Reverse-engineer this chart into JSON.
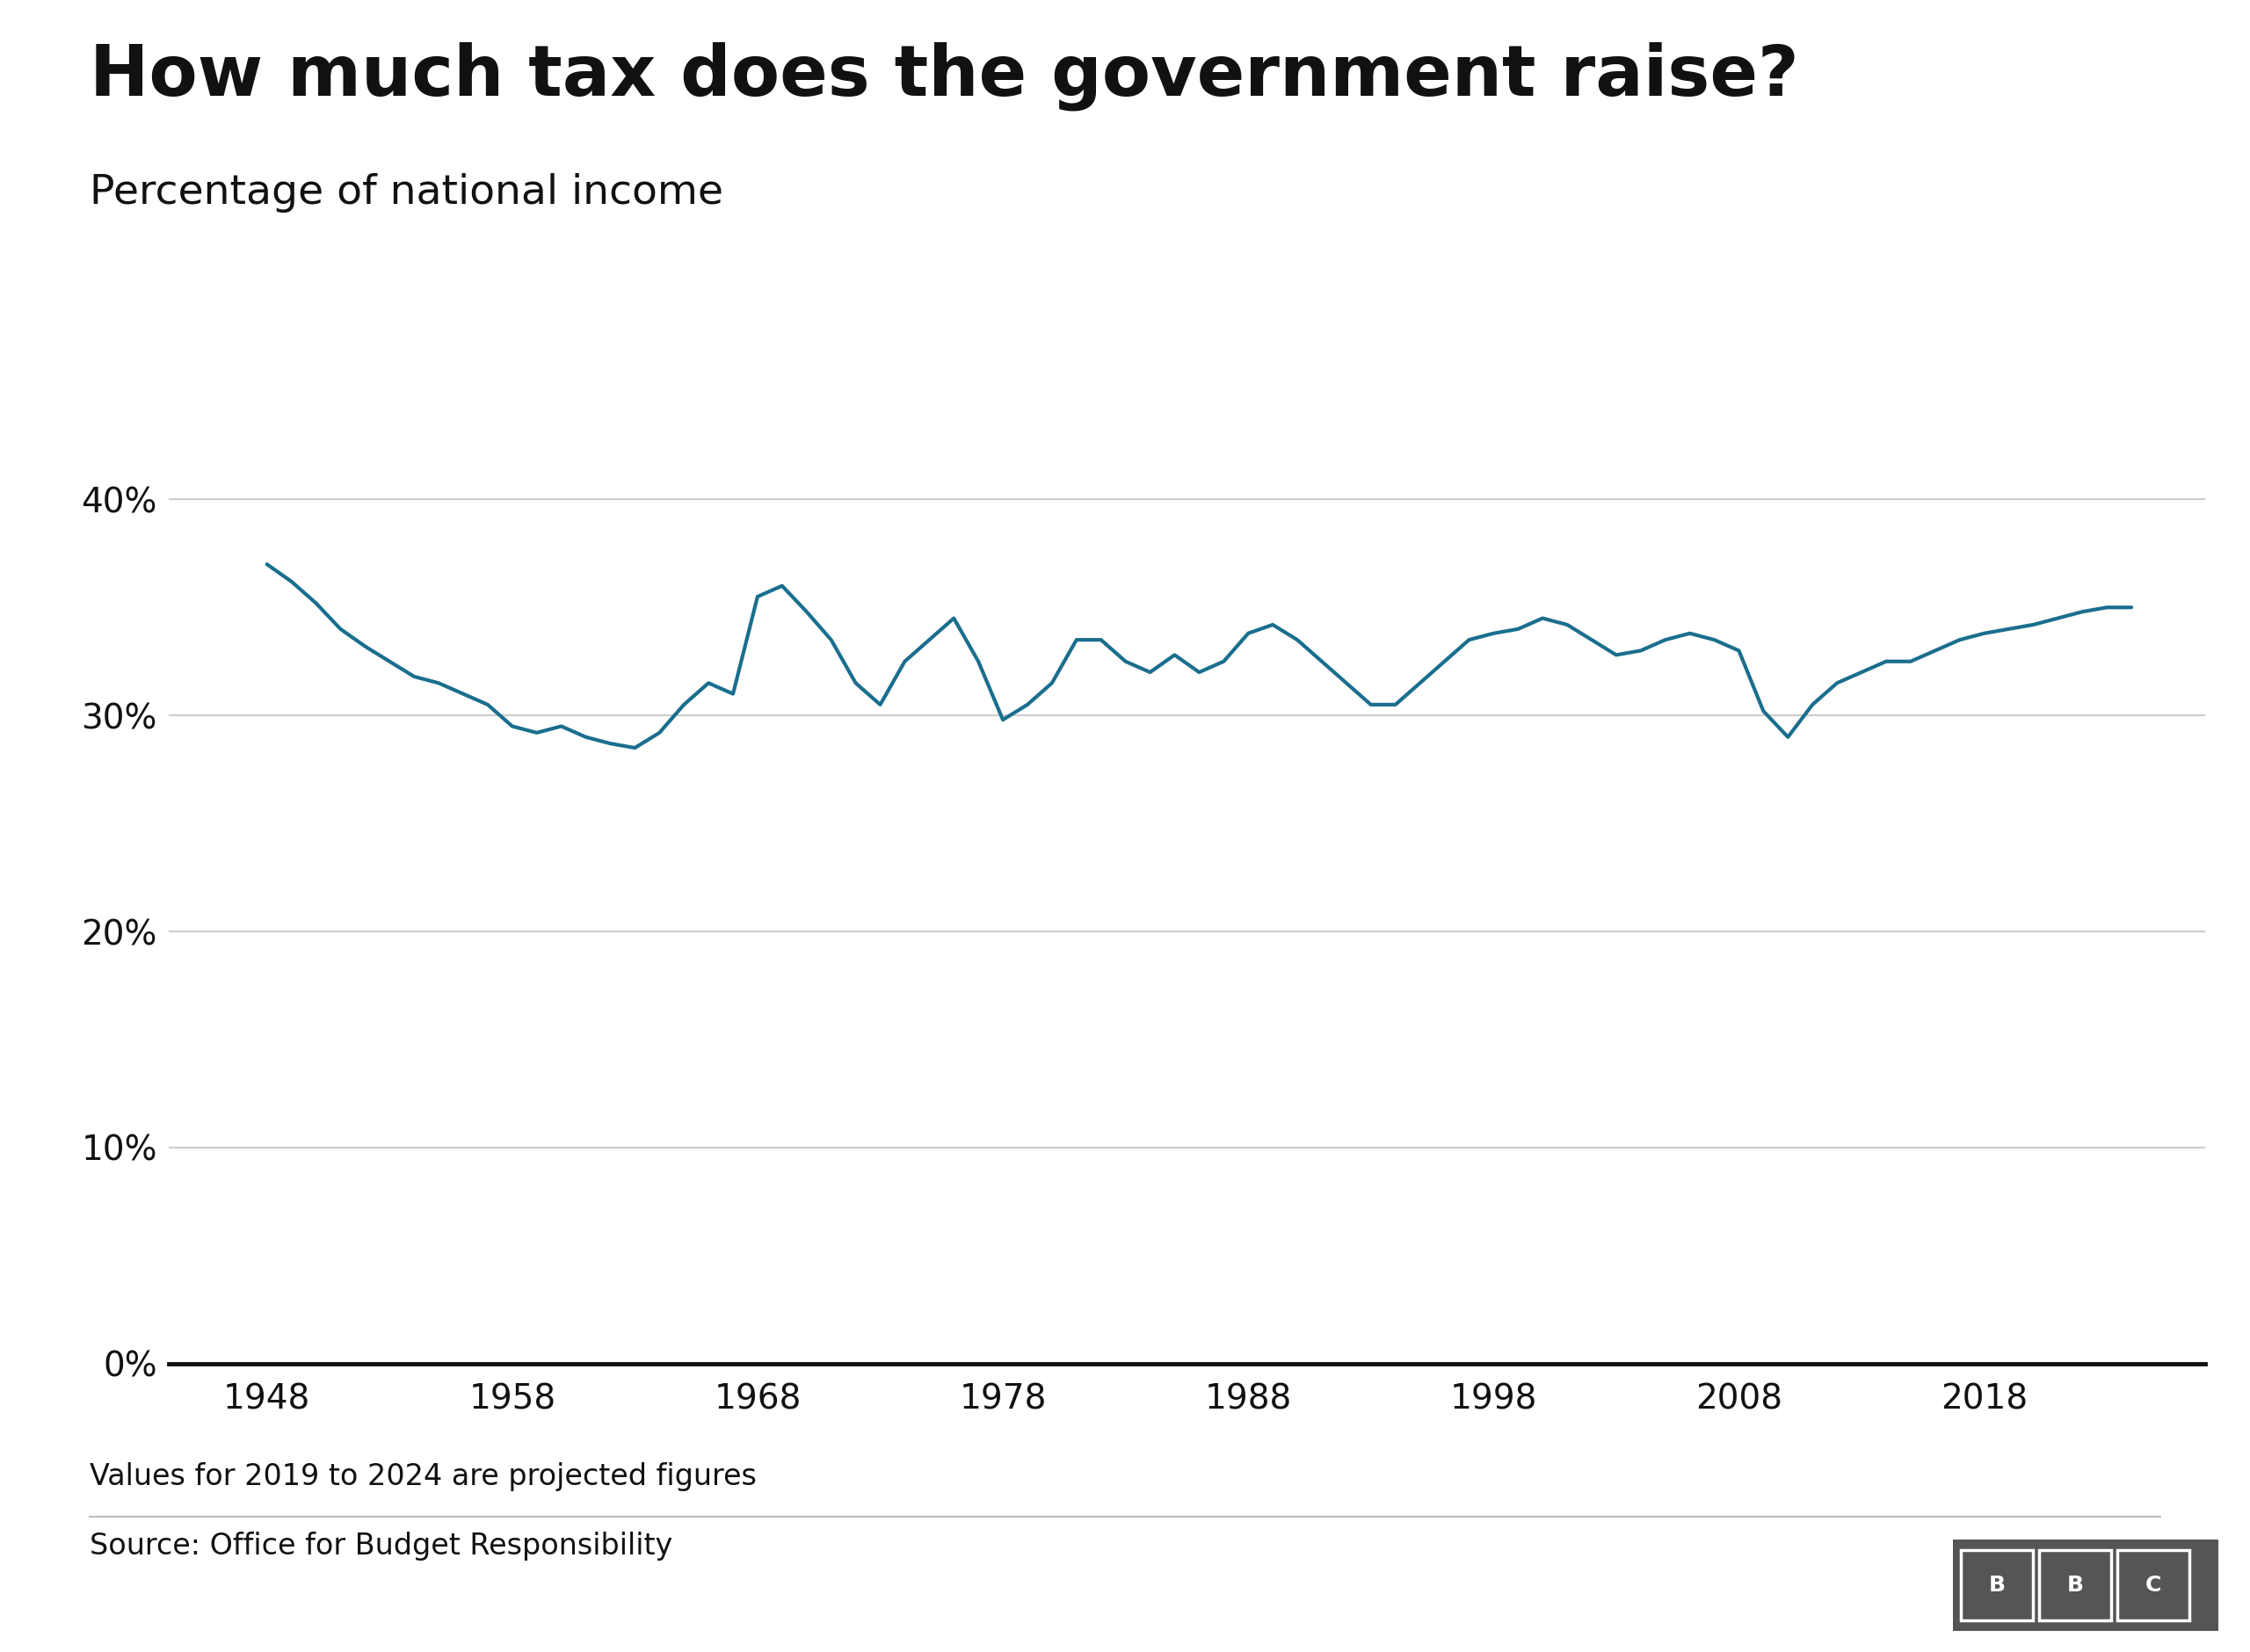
{
  "title": "How much tax does the government raise?",
  "subtitle": "Percentage of national income",
  "line_color": "#1a6e8e",
  "line_width": 3.0,
  "background_color": "#ffffff",
  "text_color": "#111111",
  "grid_color": "#cccccc",
  "zero_line_color": "#111111",
  "yticks": [
    0,
    10,
    20,
    30,
    40
  ],
  "xticks": [
    1948,
    1958,
    1968,
    1978,
    1988,
    1998,
    2008,
    2018
  ],
  "ylim": [
    -1.5,
    44
  ],
  "xlim": [
    1944,
    2027
  ],
  "footnote": "Values for 2019 to 2024 are projected figures",
  "source": "Source: Office for Budget Responsibility",
  "years": [
    1948,
    1949,
    1950,
    1951,
    1952,
    1953,
    1954,
    1955,
    1956,
    1957,
    1958,
    1959,
    1960,
    1961,
    1962,
    1963,
    1964,
    1965,
    1966,
    1967,
    1968,
    1969,
    1970,
    1971,
    1972,
    1973,
    1974,
    1975,
    1976,
    1977,
    1978,
    1979,
    1980,
    1981,
    1982,
    1983,
    1984,
    1985,
    1986,
    1987,
    1988,
    1989,
    1990,
    1991,
    1992,
    1993,
    1994,
    1995,
    1996,
    1997,
    1998,
    1999,
    2000,
    2001,
    2002,
    2003,
    2004,
    2005,
    2006,
    2007,
    2008,
    2009,
    2010,
    2011,
    2012,
    2013,
    2014,
    2015,
    2016,
    2017,
    2018,
    2019,
    2020,
    2021,
    2022,
    2023,
    2024
  ],
  "values": [
    37.0,
    36.2,
    35.2,
    34.0,
    33.2,
    32.5,
    31.8,
    31.5,
    31.0,
    30.5,
    29.5,
    29.2,
    29.5,
    29.0,
    28.7,
    28.5,
    29.2,
    30.5,
    31.5,
    31.0,
    35.5,
    36.0,
    34.8,
    33.5,
    31.5,
    30.5,
    32.5,
    33.5,
    34.5,
    32.5,
    29.8,
    30.5,
    31.5,
    33.5,
    33.5,
    32.5,
    32.0,
    32.8,
    32.0,
    32.5,
    33.8,
    34.2,
    33.5,
    32.5,
    31.5,
    30.5,
    30.5,
    31.5,
    32.5,
    33.5,
    33.8,
    34.0,
    34.5,
    34.2,
    33.5,
    32.8,
    33.0,
    33.5,
    33.8,
    33.5,
    33.0,
    30.2,
    29.0,
    30.5,
    31.5,
    32.0,
    32.5,
    32.5,
    33.0,
    33.5,
    33.8,
    34.0,
    34.2,
    34.5,
    34.8,
    35.0,
    35.0
  ],
  "title_fontsize": 58,
  "subtitle_fontsize": 34,
  "tick_fontsize": 28,
  "footnote_fontsize": 24,
  "source_fontsize": 24
}
